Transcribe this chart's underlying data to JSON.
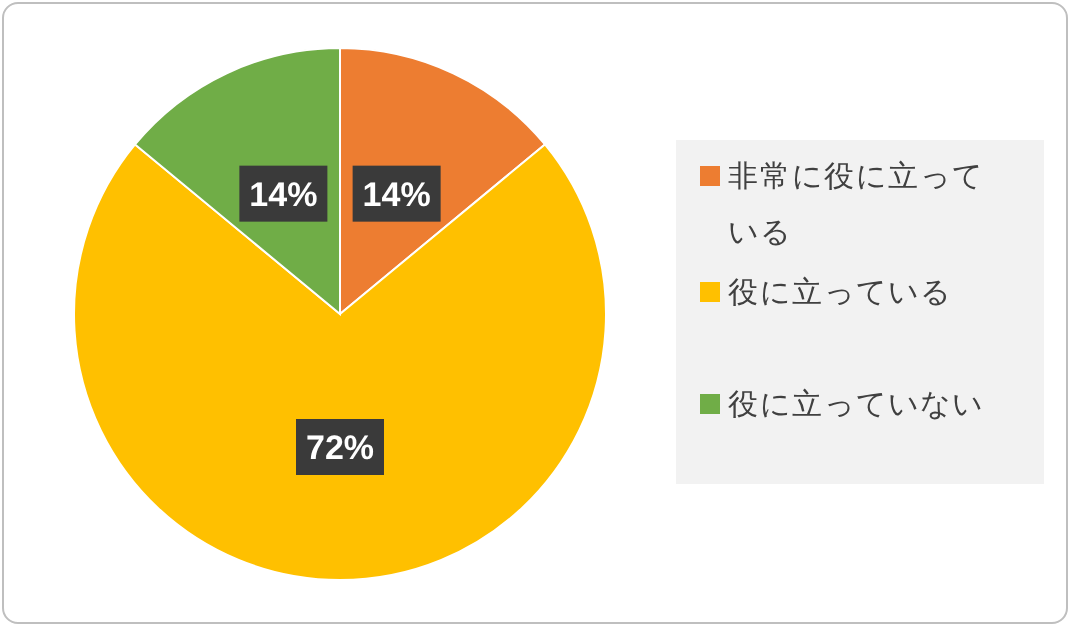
{
  "chart_data": {
    "type": "pie",
    "categories": [
      "非常に役に立っている",
      "役に立っている",
      "役に立っていない"
    ],
    "values": [
      14,
      72,
      14
    ],
    "colors": [
      "#ed7d31",
      "#ffc000",
      "#70ad47"
    ],
    "value_labels": [
      "14%",
      "72%",
      "14%"
    ],
    "legend": "right"
  }
}
